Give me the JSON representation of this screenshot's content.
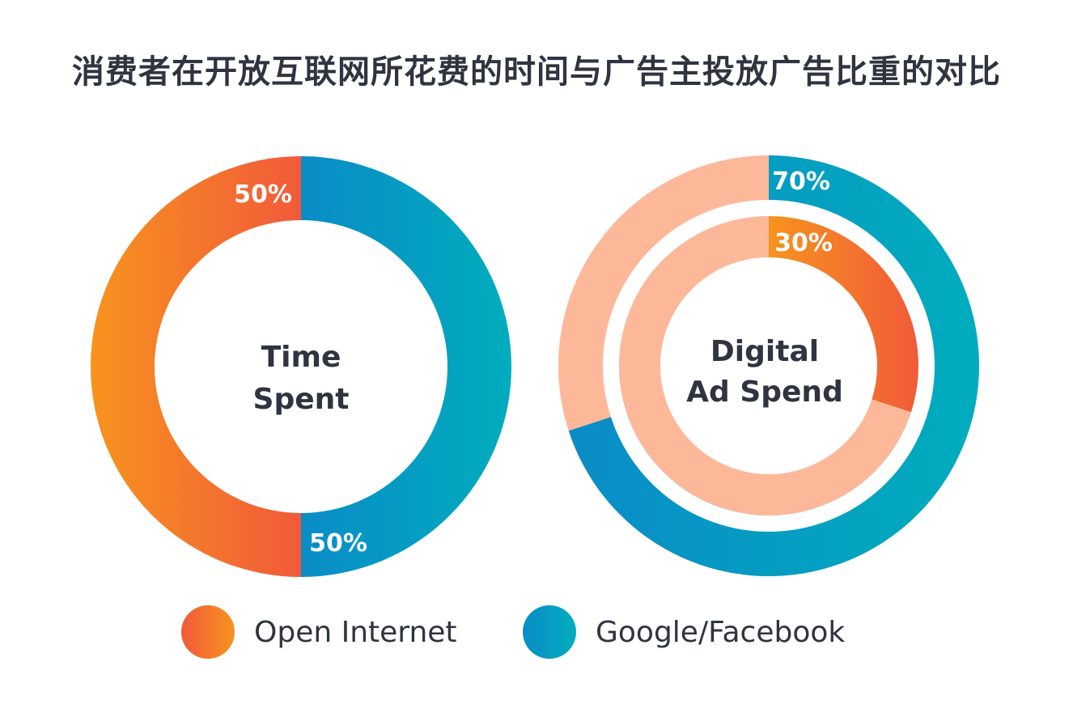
{
  "title": "消费者在开放互联网所花费的时间与广告主投放广告比重的对比",
  "colors": {
    "open_internet_start": "#f7931e",
    "open_internet_end": "#f15a3a",
    "google_facebook_start": "#0a8cc7",
    "google_facebook_end": "#00adbd",
    "inactive": "#fdb89a",
    "text": "#2f3440"
  },
  "legend": [
    {
      "name": "Open Internet",
      "color_key": "open"
    },
    {
      "name": "Google/Facebook",
      "color_key": "google"
    }
  ],
  "chart_data": [
    {
      "type": "pie",
      "center_label": [
        "Time",
        "Spent"
      ],
      "slices": [
        {
          "name": "Open Internet",
          "value": 50,
          "label": "50%"
        },
        {
          "name": "Google/Facebook",
          "value": 50,
          "label": "50%"
        }
      ]
    },
    {
      "type": "pie",
      "center_label": [
        "Digital",
        "Ad Spend"
      ],
      "rings": [
        {
          "name": "Google/Facebook",
          "value": 70,
          "label": "70%"
        },
        {
          "name": "Open Internet",
          "value": 30,
          "label": "30%"
        }
      ]
    }
  ]
}
